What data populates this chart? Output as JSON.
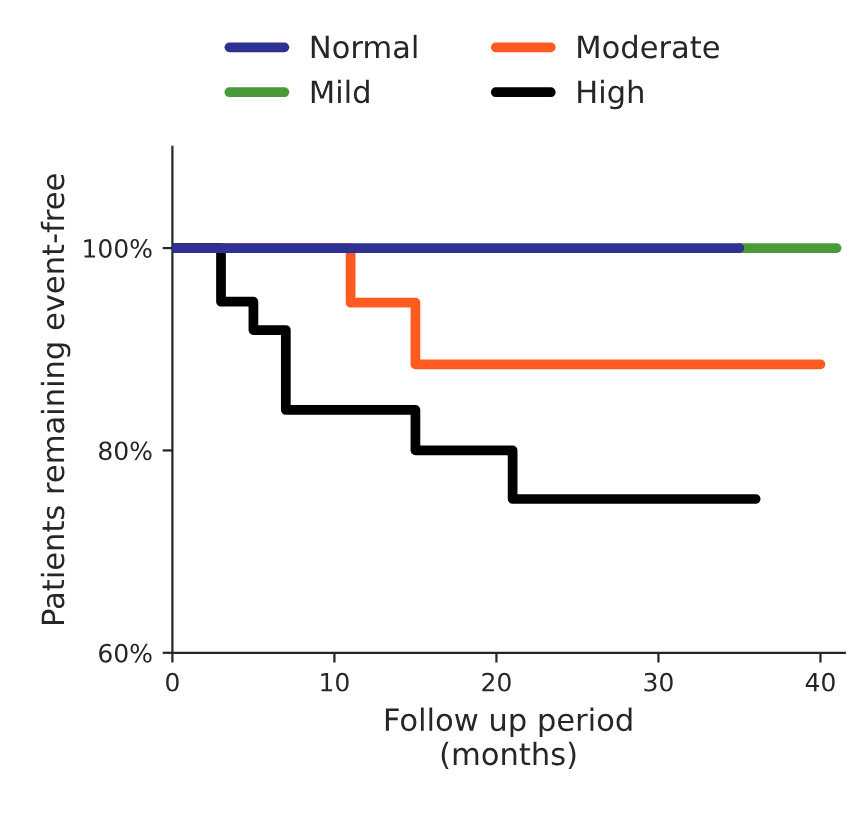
{
  "chart_data": {
    "type": "step",
    "xlabel": "Follow up period\n(months)",
    "ylabel": "Patients remaining event-free",
    "series": [
      {
        "name": "Normal",
        "color": "#2e3192",
        "x": [
          0,
          35
        ],
        "values": [
          100,
          100
        ]
      },
      {
        "name": "Mild",
        "color": "#4a9a3a",
        "x": [
          35,
          41
        ],
        "values": [
          100,
          100
        ]
      },
      {
        "name": "Moderate",
        "color": "#ff5a1f",
        "x": [
          0,
          11,
          15,
          40
        ],
        "values": [
          100,
          94.6,
          88.5,
          88.5
        ]
      },
      {
        "name": "High",
        "color": "#000000",
        "x": [
          0,
          3,
          5,
          7,
          15,
          21,
          36
        ],
        "values": [
          100,
          94.7,
          91.9,
          84,
          80,
          75.2,
          75.2
        ]
      }
    ],
    "xlim": [
      0,
      41.5
    ],
    "xticks": [
      0,
      10,
      20,
      30,
      40
    ],
    "ylim": [
      60,
      110
    ],
    "yticks": [
      {
        "value": 60,
        "label": "60%"
      },
      {
        "value": 80,
        "label": "80%"
      },
      {
        "value": 100,
        "label": "100%"
      }
    ],
    "legend": "top",
    "grid": false,
    "line_style": "solid",
    "marker": "none"
  }
}
